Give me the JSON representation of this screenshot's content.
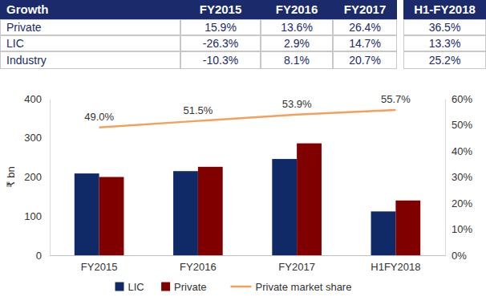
{
  "table": {
    "header": [
      "Growth",
      "FY2015",
      "FY2016",
      "FY2017",
      "H1-FY2018"
    ],
    "rows": [
      [
        "Private",
        "15.9%",
        "13.6%",
        "26.4%",
        "36.5%"
      ],
      [
        "LIC",
        "-26.3%",
        "2.9%",
        "14.7%",
        "13.3%"
      ],
      [
        "Industry",
        "-10.3%",
        "8.1%",
        "20.7%",
        "25.2%"
      ]
    ]
  },
  "chart_data": {
    "type": "bar",
    "y_label": "₹ bn",
    "categories": [
      "FY2015",
      "FY2016",
      "FY2017",
      "H1FY2018"
    ],
    "series": [
      {
        "name": "LIC",
        "color": "#0f2a66",
        "values": [
          209,
          215,
          246,
          112
        ]
      },
      {
        "name": "Private",
        "color": "#800000",
        "values": [
          200,
          226,
          286,
          140
        ]
      },
      {
        "name": "Private market share",
        "type": "line",
        "axis": "y2",
        "color": "#f4a05a",
        "data_labels": true,
        "values": [
          49.0,
          51.5,
          53.9,
          55.7
        ],
        "value_labels": [
          "49.0%",
          "51.5%",
          "53.9%",
          "55.7%"
        ]
      }
    ],
    "ylim": [
      0,
      400
    ],
    "yticks": [
      0,
      100,
      200,
      300,
      400
    ],
    "y2lim": [
      0,
      60
    ],
    "y2ticks": [
      {
        "value": 0,
        "label": "0%"
      },
      {
        "value": 10,
        "label": "10%"
      },
      {
        "value": 20,
        "label": "20%"
      },
      {
        "value": 30,
        "label": "30%"
      },
      {
        "value": 40,
        "label": "40%"
      },
      {
        "value": 50,
        "label": "50%"
      },
      {
        "value": 60,
        "label": "60%"
      }
    ],
    "grid": false,
    "legend": "bottom"
  }
}
